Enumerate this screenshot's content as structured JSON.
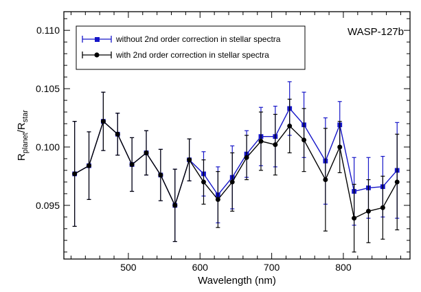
{
  "chart_data": {
    "type": "line",
    "annotation": "WASP-127b",
    "xlabel": "Wavelength (nm)",
    "ylabel": {
      "main": "R",
      "sub1": "planet",
      "sep": "/R",
      "sub2": "star"
    },
    "xlim": [
      410,
      893
    ],
    "ylim": [
      0.0904,
      0.1116
    ],
    "xticks": [
      500,
      600,
      700,
      800
    ],
    "xtick_labels": [
      "500",
      "600",
      "700",
      "800"
    ],
    "yticks": [
      0.095,
      0.1,
      0.105,
      0.11
    ],
    "ytick_labels": [
      "0.095",
      "0.100",
      "0.105",
      "0.110"
    ],
    "legend_position": "top-left",
    "grid": false,
    "series": [
      {
        "name": "without 2nd order correction in stellar spectra",
        "color": "#1515c8",
        "marker": "square",
        "x": [
          425,
          445,
          465,
          485,
          505,
          525,
          545,
          565,
          585,
          605,
          625,
          645,
          665,
          685,
          705,
          725,
          745,
          775,
          795,
          815,
          835,
          855,
          875
        ],
        "y": [
          0.0977,
          0.0984,
          0.1022,
          0.1011,
          0.0985,
          0.0995,
          0.0976,
          0.095,
          0.0989,
          0.0977,
          0.0959,
          0.0974,
          0.0994,
          0.1009,
          0.1009,
          0.1033,
          0.1019,
          0.0988,
          0.1019,
          0.0962,
          0.0965,
          0.0966,
          0.098
        ],
        "err": [
          0.0045,
          0.0029,
          0.0025,
          0.0018,
          0.0023,
          0.0019,
          0.0022,
          0.0031,
          0.0018,
          0.0019,
          0.0024,
          0.0027,
          0.002,
          0.0025,
          0.0026,
          0.0023,
          0.0028,
          0.0037,
          0.002,
          0.0029,
          0.0026,
          0.0026,
          0.0041
        ]
      },
      {
        "name": "with 2nd order correction in stellar spectra",
        "color": "#000000",
        "marker": "circle",
        "x": [
          425,
          445,
          465,
          485,
          505,
          525,
          545,
          565,
          585,
          605,
          625,
          645,
          665,
          685,
          705,
          725,
          745,
          775,
          795,
          815,
          835,
          855,
          875
        ],
        "y": [
          0.0977,
          0.0984,
          0.1022,
          0.1011,
          0.0985,
          0.0995,
          0.0976,
          0.095,
          0.0989,
          0.097,
          0.0955,
          0.097,
          0.0991,
          0.1005,
          0.1002,
          0.1018,
          0.1006,
          0.0972,
          0.1,
          0.0939,
          0.0945,
          0.0948,
          0.097
        ],
        "err": [
          0.0045,
          0.0029,
          0.0025,
          0.0018,
          0.0023,
          0.0019,
          0.0022,
          0.0031,
          0.0018,
          0.0019,
          0.0024,
          0.0025,
          0.0019,
          0.0025,
          0.0026,
          0.0023,
          0.0027,
          0.0044,
          0.0022,
          0.0029,
          0.0027,
          0.0027,
          0.0041
        ]
      }
    ]
  }
}
